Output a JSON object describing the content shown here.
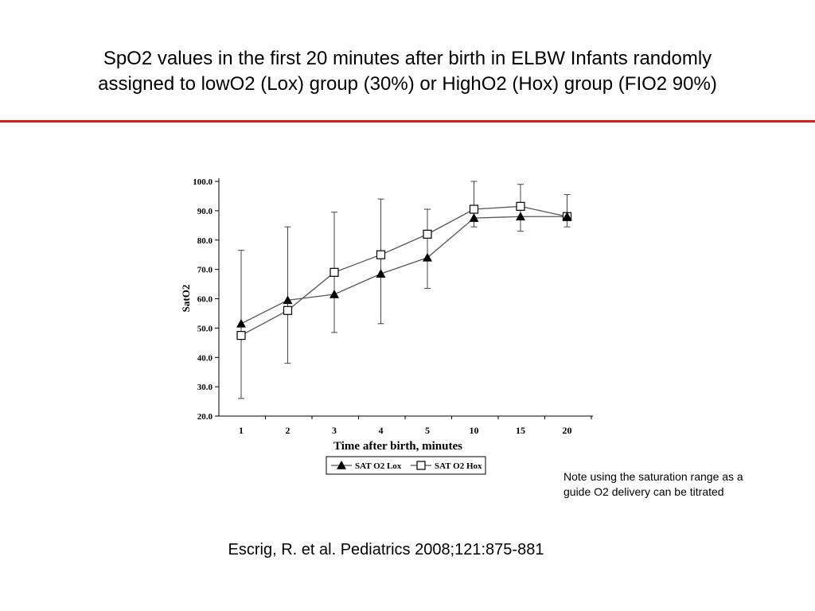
{
  "slide": {
    "title_line1": "SpO2 values in the first 20 minutes after birth in ELBW Infants randomly",
    "title_line2": "assigned to lowO2 (Lox) group (30%) or HighO2 (Hox) group (FIO2 90%)",
    "note_line1": "Note using the saturation range as a",
    "note_line2": "guide O2 delivery can be titrated",
    "citation": "Escrig, R. et al. Pediatrics 2008;121:875-881",
    "accent_color": "#d42020"
  },
  "chart_data": {
    "type": "line",
    "categories": [
      "1",
      "2",
      "3",
      "4",
      "5",
      "10",
      "15",
      "20"
    ],
    "xlabel": "Time after birth, minutes",
    "ylabel": "SatO2",
    "ylim": [
      20,
      100
    ],
    "yticks": [
      "20.0",
      "30.0",
      "40.0",
      "50.0",
      "60.0",
      "70.0",
      "80.0",
      "90.0",
      "100.0"
    ],
    "grid": false,
    "legend_position": "bottom",
    "series": [
      {
        "name": "SAT O2 Lox",
        "marker": "filled-triangle",
        "values": [
          51.5,
          59.5,
          61.5,
          68.5,
          74,
          87.5,
          88,
          88
        ],
        "error_upper": [
          76.5,
          84.5,
          89.5,
          94,
          90.5,
          100,
          99,
          95.5
        ],
        "error_lower": [
          26,
          38,
          48.5,
          51.5,
          63.5,
          84.5,
          83,
          84.5
        ]
      },
      {
        "name": "SAT O2 Hox",
        "marker": "open-square",
        "values": [
          47.5,
          56,
          69,
          75,
          82,
          90.5,
          91.5,
          88
        ],
        "error_upper": [],
        "error_lower": []
      }
    ]
  }
}
